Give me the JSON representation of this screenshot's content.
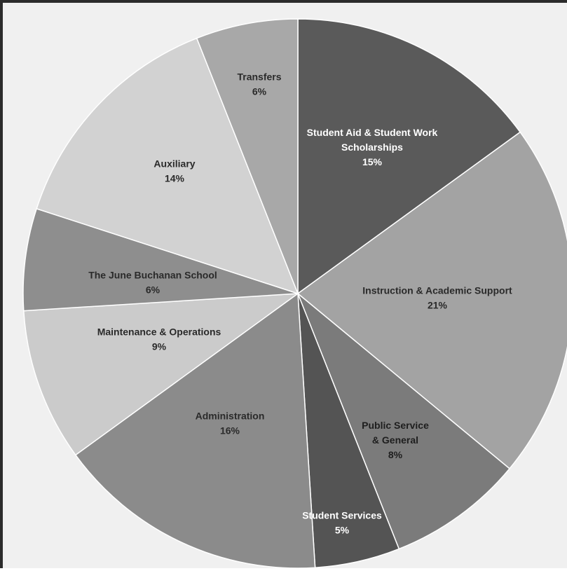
{
  "chart_data": {
    "type": "pie",
    "start_angle_deg": 0,
    "direction": "clockwise",
    "slices": [
      {
        "label_lines": [
          "Student Aid & Student Work",
          "Scholarships"
        ],
        "percent_label": "15%",
        "value": 15,
        "color": "#5a5a5a",
        "text_color": "#ffffff"
      },
      {
        "label_lines": [
          "Instruction & Academic Support"
        ],
        "percent_label": "21%",
        "value": 21,
        "color": "#a3a3a3",
        "text_color": "#2a2a2a"
      },
      {
        "label_lines": [
          "Public Service",
          "& General"
        ],
        "percent_label": "8%",
        "value": 8,
        "color": "#7b7b7b",
        "text_color": "#1e1e1e"
      },
      {
        "label_lines": [
          "Student Services"
        ],
        "percent_label": "5%",
        "value": 5,
        "color": "#545454",
        "text_color": "#ffffff"
      },
      {
        "label_lines": [
          "Administration"
        ],
        "percent_label": "16%",
        "value": 16,
        "color": "#8b8b8b",
        "text_color": "#2a2a2a"
      },
      {
        "label_lines": [
          "Maintenance & Operations"
        ],
        "percent_label": "9%",
        "value": 9,
        "color": "#cbcbcb",
        "text_color": "#2a2a2a"
      },
      {
        "label_lines": [
          "The June Buchanan School"
        ],
        "percent_label": "6%",
        "value": 6,
        "color": "#8e8e8e",
        "text_color": "#2a2a2a"
      },
      {
        "label_lines": [
          "Auxiliary"
        ],
        "percent_label": "14%",
        "value": 14,
        "color": "#d2d2d2",
        "text_color": "#2a2a2a"
      },
      {
        "label_lines": [
          "Transfers"
        ],
        "percent_label": "6%",
        "value": 6,
        "color": "#a8a8a8",
        "text_color": "#2a2a2a"
      }
    ]
  }
}
